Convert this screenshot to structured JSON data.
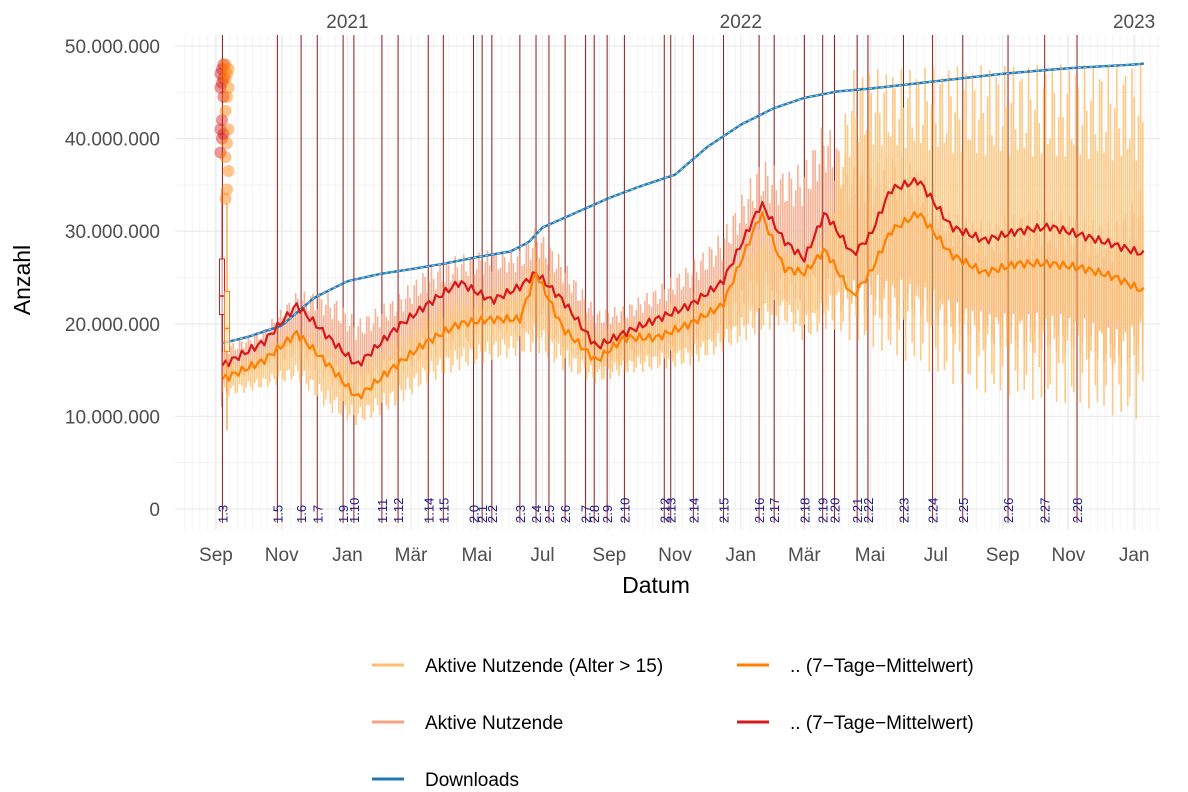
{
  "chart_data": {
    "type": "line",
    "xlabel": "Datum",
    "ylabel": "Anzahl",
    "x_range": [
      "2020-07-25",
      "2023-01-25"
    ],
    "ylim": [
      0,
      50000000
    ],
    "y_ticks": [
      {
        "value": 0,
        "label": "0"
      },
      {
        "value": 10000000,
        "label": "10.000.000"
      },
      {
        "value": 20000000,
        "label": "20.000.000"
      },
      {
        "value": 30000000,
        "label": "30.000.000"
      },
      {
        "value": 40000000,
        "label": "40.000.000"
      },
      {
        "value": 50000000,
        "label": "50.000.000"
      }
    ],
    "month_ticks": [
      {
        "date": "2020-09-01",
        "label": "Sep"
      },
      {
        "date": "2020-11-01",
        "label": "Nov"
      },
      {
        "date": "2021-01-01",
        "label": "Jan"
      },
      {
        "date": "2021-03-01",
        "label": "Mär"
      },
      {
        "date": "2021-05-01",
        "label": "Mai"
      },
      {
        "date": "2021-07-01",
        "label": "Jul"
      },
      {
        "date": "2021-09-01",
        "label": "Sep"
      },
      {
        "date": "2021-11-01",
        "label": "Nov"
      },
      {
        "date": "2022-01-01",
        "label": "Jan"
      },
      {
        "date": "2022-03-01",
        "label": "Mär"
      },
      {
        "date": "2022-05-01",
        "label": "Mai"
      },
      {
        "date": "2022-07-01",
        "label": "Jul"
      },
      {
        "date": "2022-09-01",
        "label": "Sep"
      },
      {
        "date": "2022-11-01",
        "label": "Nov"
      },
      {
        "date": "2023-01-01",
        "label": "Jan"
      }
    ],
    "year_labels": [
      {
        "date": "2021-01-01",
        "label": "2021"
      },
      {
        "date": "2022-01-01",
        "label": "2022"
      },
      {
        "date": "2023-01-01",
        "label": "2023"
      }
    ],
    "versions": [
      {
        "date": "2020-09-07",
        "label": "1.3"
      },
      {
        "date": "2020-10-28",
        "label": "1.5"
      },
      {
        "date": "2020-11-19",
        "label": "1.6"
      },
      {
        "date": "2020-12-04",
        "label": "1.7"
      },
      {
        "date": "2020-12-28",
        "label": "1.9"
      },
      {
        "date": "2021-01-07",
        "label": "1.10"
      },
      {
        "date": "2021-02-02",
        "label": "1.11"
      },
      {
        "date": "2021-02-17",
        "label": "1.12"
      },
      {
        "date": "2021-03-17",
        "label": "1.14"
      },
      {
        "date": "2021-03-31",
        "label": "1.15"
      },
      {
        "date": "2021-04-28",
        "label": "2.0"
      },
      {
        "date": "2021-05-06",
        "label": "2.1"
      },
      {
        "date": "2021-05-15",
        "label": "2.2"
      },
      {
        "date": "2021-06-10",
        "label": "2.3"
      },
      {
        "date": "2021-06-25",
        "label": "2.4"
      },
      {
        "date": "2021-07-07",
        "label": "2.5"
      },
      {
        "date": "2021-07-22",
        "label": "2.6"
      },
      {
        "date": "2021-08-10",
        "label": "2.7"
      },
      {
        "date": "2021-08-18",
        "label": "2.8"
      },
      {
        "date": "2021-08-30",
        "label": "2.9"
      },
      {
        "date": "2021-09-15",
        "label": "2.10"
      },
      {
        "date": "2021-10-22",
        "label": "2.12"
      },
      {
        "date": "2021-10-28",
        "label": "2.13"
      },
      {
        "date": "2021-11-18",
        "label": "2.14"
      },
      {
        "date": "2021-12-16",
        "label": "2.15"
      },
      {
        "date": "2022-01-18",
        "label": "2.16"
      },
      {
        "date": "2022-02-01",
        "label": "2.17"
      },
      {
        "date": "2022-03-01",
        "label": "2.18"
      },
      {
        "date": "2022-03-18",
        "label": "2.19"
      },
      {
        "date": "2022-03-29",
        "label": "2.20"
      },
      {
        "date": "2022-04-19",
        "label": "2.21"
      },
      {
        "date": "2022-04-29",
        "label": "2.22"
      },
      {
        "date": "2022-06-01",
        "label": "2.23"
      },
      {
        "date": "2022-06-28",
        "label": "2.24"
      },
      {
        "date": "2022-07-26",
        "label": "2.25"
      },
      {
        "date": "2022-09-06",
        "label": "2.26"
      },
      {
        "date": "2022-10-10",
        "label": "2.27"
      },
      {
        "date": "2022-11-09",
        "label": "2.28"
      }
    ],
    "series": [
      {
        "name": "Downloads",
        "color": "#1f78b4",
        "style": "line",
        "x": [
          "2020-09-07",
          "2020-10-01",
          "2020-11-01",
          "2020-12-01",
          "2021-01-01",
          "2021-02-01",
          "2021-03-01",
          "2021-04-01",
          "2021-05-01",
          "2021-06-01",
          "2021-06-18",
          "2021-07-01",
          "2021-08-01",
          "2021-09-01",
          "2021-10-01",
          "2021-11-01",
          "2021-12-01",
          "2022-01-01",
          "2022-02-01",
          "2022-03-01",
          "2022-04-01",
          "2022-05-01",
          "2022-06-01",
          "2022-07-01",
          "2022-08-01",
          "2022-09-01",
          "2022-10-01",
          "2022-11-01",
          "2022-12-01",
          "2023-01-01",
          "2023-01-10"
        ],
        "values": [
          17900000,
          18600000,
          19800000,
          22800000,
          24600000,
          25400000,
          25900000,
          26500000,
          27200000,
          27800000,
          28800000,
          30400000,
          32000000,
          33600000,
          34900000,
          36100000,
          39100000,
          41500000,
          43300000,
          44400000,
          45100000,
          45400000,
          45800000,
          46200000,
          46600000,
          47000000,
          47300000,
          47600000,
          47800000,
          48000000,
          48100000
        ]
      },
      {
        "name": "Aktive Nutzende",
        "color": "#f4a582",
        "style": "daily",
        "x": [
          "2020-09-07",
          "2020-10-15",
          "2020-11-15",
          "2020-12-15",
          "2021-01-10",
          "2021-02-15",
          "2021-03-15",
          "2021-04-15",
          "2021-05-15",
          "2021-06-10",
          "2021-06-25",
          "2021-07-20",
          "2021-08-20",
          "2021-09-15",
          "2021-10-15",
          "2021-11-15",
          "2021-12-15",
          "2022-01-20",
          "2022-02-10",
          "2022-03-01",
          "2022-03-20",
          "2022-04-15",
          "2022-05-01",
          "2022-05-20",
          "2022-06-15",
          "2022-07-15",
          "2022-08-15",
          "2022-09-15",
          "2022-10-15",
          "2022-11-15",
          "2022-12-15",
          "2023-01-10"
        ],
        "min": [
          13500000,
          15000000,
          16500000,
          13500000,
          12000000,
          14500000,
          16000000,
          17500000,
          19000000,
          19000000,
          19500000,
          17500000,
          15000000,
          15500000,
          16500000,
          17000000,
          18500000,
          21000000,
          22000000,
          20000000,
          22000000,
          20000000,
          21000000,
          20000000,
          20500000,
          19000000,
          17500000,
          17000000,
          17000000,
          16500000,
          15000000,
          15500000
        ],
        "max": [
          17500000,
          19500000,
          23500000,
          23500000,
          20500000,
          23000000,
          26000000,
          27500000,
          28000000,
          28000000,
          30500000,
          27000000,
          21500000,
          22000000,
          24000000,
          26500000,
          30000000,
          38000000,
          36500000,
          37500000,
          42000000,
          37000000,
          37000000,
          38500000,
          37000000,
          32000000,
          31000000,
          32000000,
          32500000,
          31500000,
          31000000,
          35000000
        ]
      },
      {
        "name": ".. (7−Tage−Mittelwert)",
        "color": "#d7191c",
        "style": "line",
        "x": [
          "2020-09-07",
          "2020-10-15",
          "2020-11-15",
          "2020-12-15",
          "2021-01-10",
          "2021-02-15",
          "2021-03-15",
          "2021-04-15",
          "2021-05-15",
          "2021-06-10",
          "2021-06-25",
          "2021-07-20",
          "2021-08-20",
          "2021-09-15",
          "2021-10-15",
          "2021-11-15",
          "2021-12-15",
          "2022-01-20",
          "2022-02-10",
          "2022-03-01",
          "2022-03-20",
          "2022-04-15",
          "2022-05-01",
          "2022-05-20",
          "2022-06-15",
          "2022-07-15",
          "2022-08-15",
          "2022-09-15",
          "2022-10-15",
          "2022-11-15",
          "2022-12-15",
          "2023-01-10"
        ],
        "values": [
          15500000,
          18000000,
          22000000,
          18500000,
          15500000,
          19500000,
          22000000,
          24500000,
          22500000,
          24000000,
          25500000,
          22500000,
          17500000,
          19000000,
          20500000,
          22000000,
          24500000,
          33000000,
          29000000,
          27000000,
          32000000,
          27500000,
          29500000,
          34500000,
          35500000,
          30500000,
          29000000,
          30000000,
          30500000,
          29500000,
          28500000,
          27500000
        ]
      },
      {
        "name": "Aktive Nutzende (Alter > 15)",
        "color": "#fdbf6f",
        "style": "daily",
        "x": [
          "2020-09-07",
          "2020-10-15",
          "2020-11-15",
          "2020-12-15",
          "2021-01-10",
          "2021-02-15",
          "2021-03-15",
          "2021-04-15",
          "2021-05-15",
          "2021-06-10",
          "2021-06-25",
          "2021-07-20",
          "2021-08-20",
          "2021-09-15",
          "2021-10-15",
          "2021-11-15",
          "2021-12-15",
          "2022-01-20",
          "2022-02-10",
          "2022-03-01",
          "2022-03-20",
          "2022-04-15",
          "2022-05-01",
          "2022-05-20",
          "2022-06-15",
          "2022-07-15",
          "2022-08-15",
          "2022-09-15",
          "2022-10-15",
          "2022-11-15",
          "2022-12-15",
          "2023-01-10"
        ],
        "min": [
          12000000,
          13000000,
          14000000,
          10500000,
          9000000,
          11000000,
          13500000,
          15000000,
          16000000,
          16500000,
          17000000,
          15000000,
          13500000,
          14500000,
          15000000,
          15500000,
          17000000,
          19000000,
          20000000,
          18000000,
          19500000,
          18000000,
          17500000,
          16500000,
          15500000,
          13500000,
          12500000,
          12000000,
          11500000,
          11000000,
          10000000,
          9500000
        ],
        "max": [
          16000000,
          17500000,
          20000000,
          18500000,
          16000000,
          19000000,
          21500000,
          23500000,
          24000000,
          25000000,
          28500000,
          24000000,
          19500000,
          20500000,
          21500000,
          23000000,
          25000000,
          31000000,
          30000000,
          28500000,
          30500000,
          47500000,
          47500000,
          47500000,
          47800000,
          47800000,
          47900000,
          48000000,
          48000000,
          48000000,
          48100000,
          48100000
        ]
      },
      {
        "name": ".. (7−Tage−Mittelwert)",
        "color": "#ff7f00",
        "style": "line",
        "x": [
          "2020-09-07",
          "2020-10-15",
          "2020-11-15",
          "2020-12-15",
          "2021-01-10",
          "2021-02-15",
          "2021-03-15",
          "2021-04-15",
          "2021-05-15",
          "2021-06-10",
          "2021-06-25",
          "2021-07-20",
          "2021-08-20",
          "2021-09-15",
          "2021-10-15",
          "2021-11-15",
          "2021-12-15",
          "2022-01-20",
          "2022-02-10",
          "2022-03-01",
          "2022-03-20",
          "2022-04-15",
          "2022-05-01",
          "2022-05-20",
          "2022-06-15",
          "2022-07-15",
          "2022-08-15",
          "2022-09-15",
          "2022-10-15",
          "2022-11-15",
          "2022-12-15",
          "2023-01-10"
        ],
        "values": [
          14000000,
          16000000,
          19000000,
          15500000,
          12000000,
          15500000,
          18000000,
          20000000,
          20500000,
          20500000,
          25500000,
          19500000,
          16000000,
          18500000,
          18500000,
          20000000,
          22000000,
          32000000,
          26000000,
          25500000,
          28000000,
          23000000,
          25500000,
          30000000,
          32000000,
          27500000,
          25500000,
          26500000,
          26500000,
          26000000,
          25000000,
          23500000
        ]
      }
    ],
    "boxplots": [
      {
        "name": "Aktive Nutzende",
        "color": "#d7191c",
        "min": 11000000,
        "q1": 21000000,
        "median": 23000000,
        "q3": 27000000,
        "max": 34500000,
        "outliers": [
          38500000,
          40000000,
          40500000,
          41000000,
          42000000,
          44500000,
          45500000,
          46000000,
          46500000,
          47000000,
          47500000,
          48000000
        ]
      },
      {
        "name": "Aktive Nutzende (Alter > 15)",
        "color": "#ff7f00",
        "min": 8500000,
        "q1": 17000000,
        "median": 19500000,
        "q3": 23500000,
        "max": 33000000,
        "outliers": [
          33500000,
          34500000,
          36500000,
          38000000,
          39500000,
          41000000,
          43000000,
          44500000,
          45500000,
          46500000,
          47000000,
          47500000,
          48000000
        ]
      }
    ],
    "legend": [
      {
        "label": "Aktive Nutzende (Alter > 15)",
        "color": "#fdbf6f"
      },
      {
        "label": ".. (7−Tage−Mittelwert)",
        "color": "#ff7f00"
      },
      {
        "label": "Aktive Nutzende",
        "color": "#f4a582"
      },
      {
        "label": ".. (7−Tage−Mittelwert)",
        "color": "#d7191c"
      },
      {
        "label": "Downloads",
        "color": "#1f78b4"
      }
    ],
    "legend_position": "bottom",
    "grid": true
  }
}
